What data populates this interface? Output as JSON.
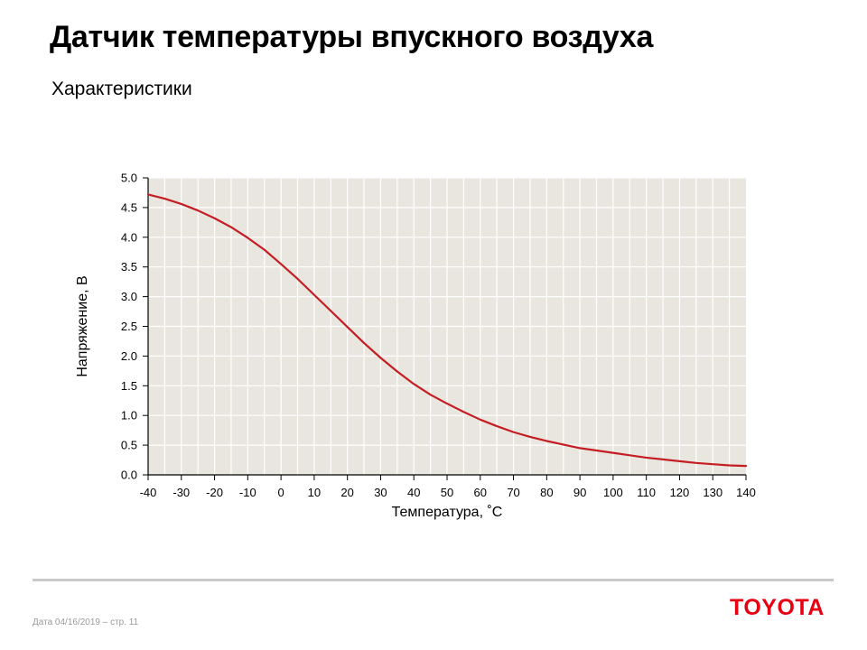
{
  "page": {
    "title": "Датчик температуры впускного воздуха",
    "subtitle": "Характеристики",
    "footer": "Дата 04/16/2019 – стр.  11",
    "logo_text": "TOYOTA",
    "logo_color": "#e60012"
  },
  "chart_data": {
    "type": "line",
    "xlabel": "Температура, ˚C",
    "ylabel": "Напряжение, В",
    "xlim": [
      -40,
      140
    ],
    "ylim": [
      0,
      5
    ],
    "x_ticks": [
      -40,
      -30,
      -20,
      -10,
      0,
      10,
      20,
      30,
      40,
      50,
      60,
      70,
      80,
      90,
      100,
      110,
      120,
      130,
      140
    ],
    "x_tick_labels": [
      "-40",
      "-30",
      "-20",
      "-10",
      "0",
      "10",
      "20",
      "30",
      "40",
      "50",
      "60",
      "70",
      "80",
      "90",
      "100",
      "110",
      "120",
      "130",
      "140"
    ],
    "y_ticks": [
      0,
      0.5,
      1,
      1.5,
      2,
      2.5,
      3,
      3.5,
      4,
      4.5,
      5
    ],
    "y_tick_labels": [
      "0.0",
      "0.5",
      "1.0",
      "1.5",
      "2.0",
      "2.5",
      "3.0",
      "3.5",
      "4.0",
      "4.5",
      "5.0"
    ],
    "grid": true,
    "background_color": "#e9e6df",
    "grid_color": "#ffffff",
    "line_color": "#c41e24",
    "series": [
      {
        "x": [
          -40,
          -35,
          -30,
          -25,
          -20,
          -15,
          -10,
          -5,
          0,
          5,
          10,
          15,
          20,
          25,
          30,
          35,
          40,
          45,
          50,
          55,
          60,
          65,
          70,
          75,
          80,
          85,
          90,
          95,
          100,
          105,
          110,
          115,
          120,
          125,
          130,
          135,
          140
        ],
        "values": [
          4.72,
          4.65,
          4.56,
          4.45,
          4.32,
          4.17,
          3.99,
          3.79,
          3.55,
          3.3,
          3.03,
          2.76,
          2.49,
          2.22,
          1.97,
          1.74,
          1.53,
          1.35,
          1.2,
          1.06,
          0.93,
          0.82,
          0.72,
          0.64,
          0.57,
          0.51,
          0.45,
          0.41,
          0.37,
          0.33,
          0.29,
          0.26,
          0.23,
          0.2,
          0.18,
          0.16,
          0.15
        ]
      }
    ]
  }
}
